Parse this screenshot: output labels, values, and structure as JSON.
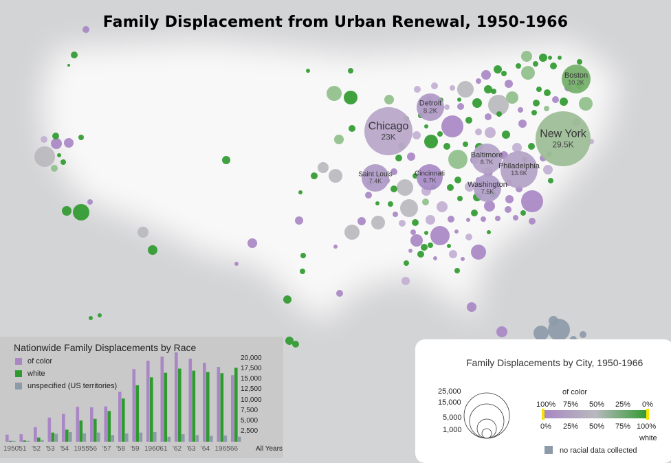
{
  "title": "Family Displacement from Urban Renewal, 1950-1966",
  "colors": {
    "of_color": "#a887c4",
    "white": "#2f9a2f",
    "unspecified": "#8d9aa8",
    "background": "#d3d4d6"
  },
  "labeled_cities": [
    {
      "name": "Chicago",
      "value": "23K"
    },
    {
      "name": "Detroit",
      "value": "8.2K"
    },
    {
      "name": "New York",
      "value": "29.5K"
    },
    {
      "name": "Boston",
      "value": "10.2K"
    },
    {
      "name": "Baltimore",
      "value": "8.7K"
    },
    {
      "name": "Philadelphia",
      "value": "13.6K"
    },
    {
      "name": "Saint Louis",
      "value": "7.4K"
    },
    {
      "name": "Cincinnati",
      "value": "6.7K"
    },
    {
      "name": "Washington",
      "value": "7.5K"
    }
  ],
  "chart_data": {
    "type": "bar",
    "title": "Nationwide Family Displacements by Race",
    "legend": [
      "of color",
      "white",
      "unspecified (US territories)"
    ],
    "x_tick_labels": [
      "1950",
      "'51",
      "'52",
      "'53",
      "'54",
      "1955",
      "'56",
      "'57",
      "'58",
      "'59",
      "1960",
      "'61",
      "'62",
      "'63",
      "'64",
      "1965",
      "'66"
    ],
    "y_tick_labels": [
      "20,000",
      "17,500",
      "15,000",
      "12,500",
      "10,000",
      "7,500",
      "5,000",
      "2,500"
    ],
    "extra_x_label": "All Years",
    "ylim": [
      0,
      22000
    ],
    "series": [
      {
        "name": "of color",
        "values": [
          1700,
          1800,
          3500,
          5800,
          6700,
          8400,
          8300,
          8500,
          12000,
          17500,
          19500,
          20500,
          21500,
          20000,
          19000,
          18000,
          16000
        ]
      },
      {
        "name": "white",
        "values": [
          200,
          300,
          1000,
          2200,
          2900,
          5100,
          5500,
          7400,
          10400,
          13600,
          15500,
          16600,
          17600,
          17100,
          16800,
          16500,
          17800
        ]
      },
      {
        "name": "unspecified (US territories)",
        "values": [
          200,
          200,
          400,
          1900,
          2300,
          2000,
          2200,
          1600,
          2000,
          2200,
          2300,
          1200,
          1800,
          1600,
          1400,
          1500,
          1200
        ]
      }
    ]
  },
  "city_legend": {
    "title": "Family Displacements by City, 1950-1966",
    "size_labels": [
      "25,000",
      "15,000",
      "5,000",
      "1,000"
    ],
    "of_color_label": "of color",
    "white_label": "white",
    "top_ticks": [
      "100%",
      "75%",
      "50%",
      "25%",
      "0%"
    ],
    "bottom_ticks": [
      "0%",
      "25%",
      "50%",
      "75%",
      "100%"
    ],
    "no_data_label": "no racial data collected"
  }
}
